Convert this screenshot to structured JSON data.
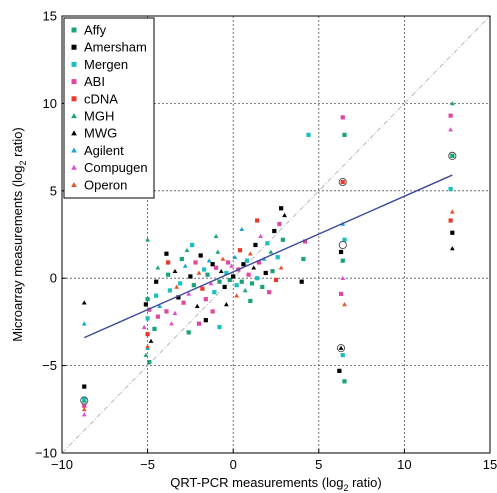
{
  "chart_data": {
    "type": "scatter",
    "title": "",
    "xlabel_main": "QRT-PCR measurements (log",
    "xlabel_sub": "2",
    "xlabel_tail": " ratio)",
    "ylabel_main": "Microarray measurements (log",
    "ylabel_sub": "2",
    "ylabel_tail": " ratio)",
    "xlim": [
      -10,
      15
    ],
    "ylim": [
      -10,
      15
    ],
    "xticks": [
      -10,
      -5,
      0,
      5,
      10,
      15
    ],
    "yticks": [
      -10,
      -5,
      0,
      5,
      10,
      15
    ],
    "x_tick_labels": [
      "−10",
      "−5",
      "0",
      "5",
      "10",
      "15"
    ],
    "y_tick_labels": [
      "−10",
      "−5",
      "0",
      "5",
      "10",
      "15"
    ],
    "grid": true,
    "legend_position": "top-left",
    "identity_line": {
      "from": [
        -10,
        -10
      ],
      "to": [
        15,
        15
      ],
      "color": "#aaaaaa"
    },
    "regression_line": {
      "from": [
        -8.7,
        -3.4
      ],
      "to": [
        12.8,
        5.9
      ],
      "color": "#3d4b9a"
    },
    "series": [
      {
        "name": "Affy",
        "color": "#1aa37a",
        "marker": "square"
      },
      {
        "name": "Amersham",
        "color": "#000000",
        "marker": "square"
      },
      {
        "name": "Mergen",
        "color": "#1bbfbf",
        "marker": "square"
      },
      {
        "name": "ABI",
        "color": "#e0479e",
        "marker": "square"
      },
      {
        "name": "cDNA",
        "color": "#e8382c",
        "marker": "square"
      },
      {
        "name": "MGH",
        "color": "#1aa37a",
        "marker": "triangle"
      },
      {
        "name": "MWG",
        "color": "#000000",
        "marker": "triangle"
      },
      {
        "name": "Agilent",
        "color": "#1aa3d8",
        "marker": "triangle"
      },
      {
        "name": "Compugen",
        "color": "#e04fd0",
        "marker": "triangle"
      },
      {
        "name": "Operon",
        "color": "#e8552c",
        "marker": "triangle"
      }
    ],
    "points": [
      [
        -8.7,
        -6.2,
        1
      ],
      [
        -8.7,
        -7.0,
        0
      ],
      [
        -8.7,
        -7.3,
        3
      ],
      [
        -8.7,
        -7.8,
        8
      ],
      [
        -8.7,
        -1.4,
        6
      ],
      [
        -8.7,
        -2.6,
        7
      ],
      [
        -8.7,
        -6.9,
        2
      ],
      [
        -8.7,
        -7.5,
        9
      ],
      [
        -5.0,
        2.2,
        5
      ],
      [
        -5.0,
        -1.2,
        0
      ],
      [
        -5.1,
        -1.5,
        1
      ],
      [
        -4.9,
        -1.8,
        3
      ],
      [
        -5.0,
        -2.3,
        2
      ],
      [
        -5.2,
        -2.8,
        8
      ],
      [
        -5.0,
        -3.2,
        4
      ],
      [
        -4.8,
        -3.6,
        6
      ],
      [
        -5.0,
        -4.0,
        7
      ],
      [
        -5.1,
        -4.4,
        5
      ],
      [
        -4.9,
        -4.8,
        0
      ],
      [
        -5.0,
        -3.9,
        9
      ],
      [
        -4.5,
        -0.2,
        1
      ],
      [
        -4.5,
        -1.0,
        2
      ],
      [
        -4.4,
        -2.2,
        3
      ],
      [
        -4.6,
        -2.9,
        0
      ],
      [
        -4.3,
        -1.6,
        7
      ],
      [
        -4.4,
        0.6,
        5
      ],
      [
        -3.9,
        1.4,
        1
      ],
      [
        -3.8,
        0.2,
        0
      ],
      [
        -3.7,
        -0.7,
        2
      ],
      [
        -3.9,
        -1.9,
        3
      ],
      [
        -3.6,
        -2.6,
        8
      ],
      [
        -3.8,
        0.9,
        4
      ],
      [
        -3.4,
        0.4,
        6
      ],
      [
        -3.3,
        -0.5,
        9
      ],
      [
        -3.2,
        -1.1,
        1
      ],
      [
        -3.0,
        1.1,
        0
      ],
      [
        -3.1,
        -0.3,
        2
      ],
      [
        -2.9,
        -1.4,
        3
      ],
      [
        -2.8,
        0.7,
        7
      ],
      [
        -2.7,
        1.6,
        5
      ],
      [
        -2.6,
        -0.9,
        8
      ],
      [
        -2.5,
        0.1,
        1
      ],
      [
        -2.4,
        1.9,
        2
      ],
      [
        -2.3,
        -0.4,
        0
      ],
      [
        -2.2,
        0.9,
        3
      ],
      [
        -2.1,
        -1.6,
        6
      ],
      [
        -2.0,
        0.3,
        9
      ],
      [
        -1.9,
        1.3,
        1
      ],
      [
        -1.8,
        -0.6,
        4
      ],
      [
        -1.7,
        0.5,
        2
      ],
      [
        -1.6,
        -1.2,
        3
      ],
      [
        -1.5,
        0.2,
        0
      ],
      [
        -1.4,
        1.0,
        7
      ],
      [
        -1.3,
        -0.3,
        8
      ],
      [
        -1.2,
        0.8,
        1
      ],
      [
        -1.1,
        -0.8,
        2
      ],
      [
        -1.0,
        0.6,
        3
      ],
      [
        -0.9,
        1.5,
        5
      ],
      [
        -0.8,
        -0.2,
        0
      ],
      [
        -0.7,
        0.4,
        6
      ],
      [
        -0.6,
        1.1,
        9
      ],
      [
        -0.5,
        -0.5,
        1
      ],
      [
        -0.4,
        0.3,
        2
      ],
      [
        -0.3,
        0.9,
        3
      ],
      [
        -0.2,
        -0.1,
        0
      ],
      [
        -0.1,
        0.7,
        8
      ],
      [
        0.0,
        0.1,
        1
      ],
      [
        0.1,
        1.2,
        7
      ],
      [
        0.2,
        -0.4,
        2
      ],
      [
        0.3,
        0.5,
        3
      ],
      [
        0.4,
        1.6,
        4
      ],
      [
        0.5,
        -0.2,
        0
      ],
      [
        0.6,
        0.8,
        1
      ],
      [
        0.7,
        -0.7,
        5
      ],
      [
        0.8,
        1.0,
        2
      ],
      [
        0.9,
        0.2,
        3
      ],
      [
        1.0,
        1.4,
        9
      ],
      [
        1.1,
        -0.3,
        0
      ],
      [
        1.2,
        0.6,
        6
      ],
      [
        1.3,
        1.9,
        1
      ],
      [
        1.4,
        0.0,
        2
      ],
      [
        1.5,
        0.9,
        3
      ],
      [
        1.6,
        2.4,
        8
      ],
      [
        1.7,
        -0.5,
        0
      ],
      [
        1.8,
        1.1,
        7
      ],
      [
        1.9,
        0.3,
        1
      ],
      [
        2.0,
        2.0,
        2
      ],
      [
        2.1,
        -0.8,
        3
      ],
      [
        2.2,
        1.5,
        5
      ],
      [
        2.3,
        0.4,
        0
      ],
      [
        2.4,
        2.7,
        1
      ],
      [
        2.5,
        -0.1,
        4
      ],
      [
        2.6,
        1.2,
        2
      ],
      [
        2.7,
        3.1,
        3
      ],
      [
        2.8,
        0.6,
        9
      ],
      [
        2.9,
        2.2,
        0
      ],
      [
        3.0,
        3.6,
        6
      ],
      [
        2.8,
        4.0,
        1
      ],
      [
        -1.6,
        -2.4,
        1
      ],
      [
        -1.2,
        -1.9,
        3
      ],
      [
        -0.8,
        -2.8,
        2
      ],
      [
        -2.6,
        -3.1,
        0
      ],
      [
        -3.4,
        -2.0,
        8
      ],
      [
        -1.0,
        2.4,
        5
      ],
      [
        0.5,
        2.8,
        7
      ],
      [
        1.4,
        3.3,
        4
      ],
      [
        -0.4,
        -1.5,
        6
      ],
      [
        0.2,
        -1.0,
        9
      ],
      [
        1.0,
        -1.3,
        0
      ],
      [
        -2.0,
        -2.6,
        3
      ],
      [
        6.5,
        8.2,
        0
      ],
      [
        6.4,
        9.2,
        3
      ],
      [
        6.3,
        1.5,
        1
      ],
      [
        6.4,
        1.0,
        0
      ],
      [
        6.5,
        2.2,
        2
      ],
      [
        6.4,
        3.1,
        7
      ],
      [
        6.3,
        -4.0,
        6
      ],
      [
        6.4,
        -4.4,
        2
      ],
      [
        6.2,
        -5.3,
        1
      ],
      [
        6.5,
        -5.9,
        0
      ],
      [
        6.3,
        -0.9,
        3
      ],
      [
        6.4,
        0.0,
        8
      ],
      [
        6.5,
        -1.5,
        9
      ],
      [
        6.4,
        5.5,
        4
      ],
      [
        4.4,
        8.2,
        2
      ],
      [
        4.1,
        1.1,
        0
      ],
      [
        4.0,
        -0.2,
        1
      ],
      [
        4.2,
        2.1,
        3
      ],
      [
        12.7,
        9.3,
        3
      ],
      [
        12.8,
        10.0,
        5
      ],
      [
        12.8,
        7.0,
        0
      ],
      [
        12.7,
        5.1,
        2
      ],
      [
        12.8,
        3.8,
        9
      ],
      [
        12.7,
        3.3,
        4
      ],
      [
        12.8,
        2.6,
        1
      ],
      [
        12.8,
        1.7,
        6
      ],
      [
        12.7,
        8.5,
        8
      ]
    ],
    "open_circles": [
      [
        6.4,
        5.5
      ],
      [
        -8.7,
        -7.0
      ],
      [
        12.8,
        7.0
      ],
      [
        6.3,
        -4.0
      ],
      [
        6.4,
        1.9
      ]
    ]
  }
}
